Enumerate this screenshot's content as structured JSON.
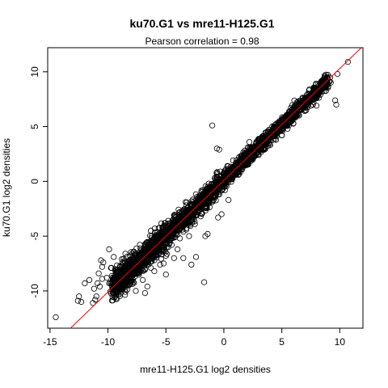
{
  "chart_data": {
    "type": "scatter",
    "title": "ku70.G1 vs mre11-H125.G1",
    "subtitle_label": "Pearson correlation = ",
    "subtitle_value": "0.98",
    "xlabel": "mre11-H125.G1 log2 densities",
    "ylabel": "ku70.G1 log2 densities",
    "xlim": [
      -15.2,
      12.0
    ],
    "ylim": [
      -13.4,
      12.2
    ],
    "x_ticks": [
      -15,
      -10,
      -5,
      0,
      5,
      10
    ],
    "x_tick_labels": [
      "-15",
      "-10",
      "-5",
      "0",
      "5",
      "10"
    ],
    "y_ticks": [
      -10,
      -5,
      0,
      5,
      10
    ],
    "y_tick_labels": [
      "-10",
      "-5",
      "0",
      "5",
      "10"
    ],
    "grid": false,
    "legend": "none",
    "reference_line": {
      "slope": 1.02,
      "intercept": 0.1,
      "color": "#ff0000"
    },
    "point_color": "#000000",
    "points": [
      [
        -14.5,
        -12.4
      ],
      [
        -12.6,
        -10.9
      ],
      [
        -12.3,
        -11.0
      ],
      [
        -12.5,
        -10.5
      ],
      [
        -11.3,
        -11.1
      ],
      [
        -11.1,
        -10.8
      ],
      [
        -11.0,
        -10.5
      ],
      [
        -11.2,
        -9.8
      ],
      [
        -10.9,
        -9.3
      ],
      [
        -10.7,
        -9.6
      ],
      [
        -10.5,
        -7.8
      ],
      [
        -10.4,
        -7.4
      ],
      [
        -10.6,
        -7.2
      ],
      [
        -10.8,
        -8.4
      ],
      [
        -10.1,
        -8.8
      ],
      [
        -9.9,
        -9.3
      ],
      [
        -9.7,
        -7.9
      ],
      [
        -9.5,
        -6.9
      ],
      [
        -9.3,
        -8.1
      ],
      [
        -9.0,
        -8.9
      ],
      [
        -8.8,
        -9.2
      ],
      [
        -8.5,
        -6.6
      ],
      [
        -8.3,
        -8.0
      ],
      [
        -8.0,
        -9.1
      ],
      [
        -7.8,
        -7.3
      ],
      [
        -7.5,
        -8.4
      ],
      [
        -7.2,
        -6.1
      ],
      [
        -7.0,
        -9.0
      ],
      [
        -6.8,
        -7.0
      ],
      [
        -6.5,
        -5.6
      ],
      [
        -6.3,
        -4.5
      ],
      [
        -6.0,
        -8.2
      ],
      [
        -5.8,
        -5.1
      ],
      [
        -5.5,
        -7.6
      ],
      [
        -5.3,
        -4.2
      ],
      [
        -5.0,
        -6.8
      ],
      [
        -4.8,
        -3.6
      ],
      [
        -4.5,
        -5.8
      ],
      [
        -4.3,
        -3.1
      ],
      [
        -4.0,
        -6.2
      ],
      [
        -3.8,
        -2.8
      ],
      [
        -3.5,
        -4.6
      ],
      [
        -3.3,
        -1.9
      ],
      [
        -3.0,
        -5.0
      ],
      [
        -2.8,
        -2.6
      ],
      [
        -2.5,
        -3.9
      ],
      [
        -2.3,
        -1.4
      ],
      [
        -2.0,
        -3.2
      ],
      [
        -1.8,
        -0.8
      ],
      [
        -1.5,
        -2.4
      ],
      [
        -1.3,
        -0.2
      ],
      [
        -1.0,
        -1.9
      ],
      [
        -0.8,
        0.3
      ],
      [
        -0.5,
        -1.2
      ],
      [
        -0.3,
        0.9
      ],
      [
        0.0,
        -0.5
      ],
      [
        0.3,
        1.4
      ],
      [
        0.5,
        0.2
      ],
      [
        0.8,
        1.9
      ],
      [
        1.0,
        0.6
      ],
      [
        1.3,
        2.2
      ],
      [
        1.5,
        1.1
      ],
      [
        1.8,
        2.8
      ],
      [
        2.0,
        1.5
      ],
      [
        2.3,
        3.1
      ],
      [
        2.5,
        2.0
      ],
      [
        2.8,
        3.6
      ],
      [
        3.0,
        2.4
      ],
      [
        3.3,
        3.9
      ],
      [
        3.5,
        2.9
      ],
      [
        3.8,
        4.6
      ],
      [
        4.0,
        3.3
      ],
      [
        4.3,
        5.0
      ],
      [
        4.5,
        3.8
      ],
      [
        4.8,
        5.5
      ],
      [
        5.0,
        4.2
      ],
      [
        5.3,
        5.9
      ],
      [
        5.5,
        4.8
      ],
      [
        5.8,
        6.3
      ],
      [
        6.0,
        5.3
      ],
      [
        6.3,
        6.7
      ],
      [
        6.5,
        6.0
      ],
      [
        6.8,
        7.2
      ],
      [
        7.0,
        6.5
      ],
      [
        7.3,
        7.4
      ],
      [
        7.5,
        6.9
      ],
      [
        7.8,
        8.1
      ],
      [
        8.0,
        7.6
      ],
      [
        8.3,
        8.5
      ],
      [
        8.5,
        8.2
      ],
      [
        8.0,
        6.9
      ],
      [
        9.8,
        9.8
      ],
      [
        10.7,
        10.9
      ],
      [
        9.6,
        7.4
      ],
      [
        9.7,
        7.0
      ],
      [
        -1.0,
        5.1
      ],
      [
        -0.6,
        3.0
      ],
      [
        -0.4,
        2.9
      ],
      [
        -1.7,
        -9.2
      ],
      [
        -1.4,
        -4.8
      ],
      [
        -1.6,
        -5.0
      ],
      [
        -2.4,
        -6.9
      ],
      [
        -2.8,
        -7.6
      ],
      [
        -4.8,
        -6.0
      ],
      [
        -5.2,
        -7.5
      ],
      [
        -3.5,
        -7.0
      ],
      [
        0.4,
        -1.7
      ],
      [
        -0.2,
        -3.0
      ],
      [
        -0.5,
        -3.3
      ],
      [
        -7.6,
        -10.0
      ],
      [
        -6.6,
        -9.6
      ],
      [
        -8.8,
        -7.1
      ],
      [
        -9.9,
        -6.2
      ],
      [
        -10.5,
        -8.9
      ],
      [
        -9.2,
        -9.9
      ],
      [
        -5.0,
        -8.5
      ],
      [
        -4.3,
        -7.0
      ],
      [
        -6.8,
        -10.2
      ],
      [
        -11.6,
        -9.0
      ],
      [
        -12.0,
        -9.3
      ],
      [
        1.9,
        2.5
      ],
      [
        2.2,
        3.6
      ],
      [
        0.0,
        0.0
      ],
      [
        6.7,
        6.6
      ],
      [
        8.6,
        8.7
      ],
      [
        5.7,
        5.9
      ],
      [
        4.6,
        5.0
      ],
      [
        3.4,
        3.0
      ],
      [
        -3.8,
        -5.2
      ],
      [
        -5.6,
        -6.5
      ],
      [
        -6.1,
        -6.0
      ],
      [
        -2.6,
        -3.4
      ],
      [
        -1.8,
        -1.6
      ],
      [
        1.6,
        2.1
      ],
      [
        7.9,
        7.9
      ]
    ]
  }
}
